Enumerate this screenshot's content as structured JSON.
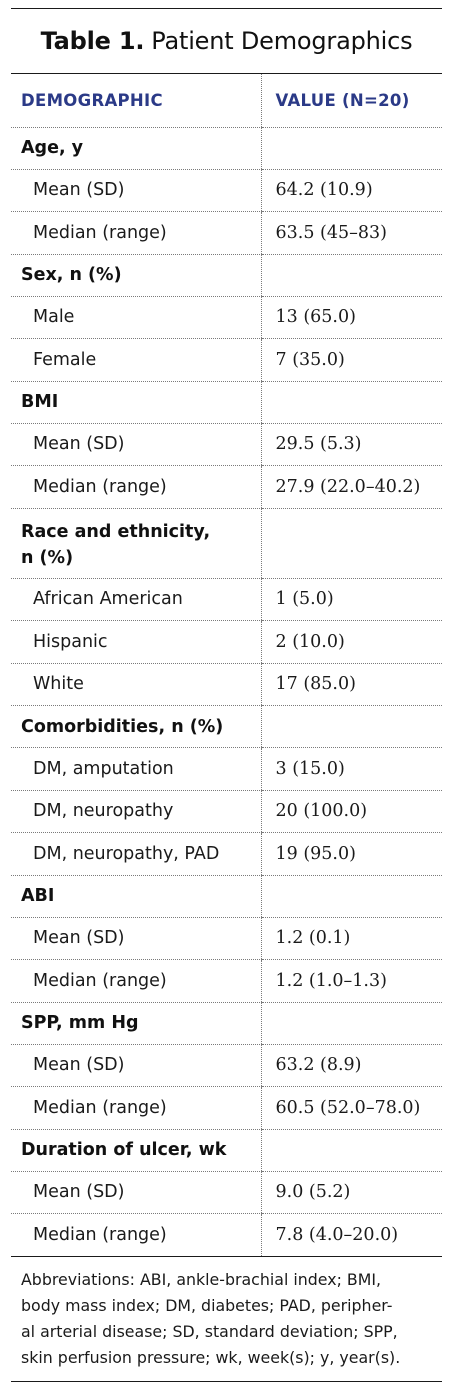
{
  "title": {
    "label": "Table 1.",
    "text": "Patient Demographics"
  },
  "columns": [
    "DEMOGRAPHIC",
    "VALUE (N=20)"
  ],
  "rows": [
    {
      "type": "header",
      "label": "Age, y",
      "value": ""
    },
    {
      "type": "sub",
      "label": "Mean (SD)",
      "value": "64.2 (10.9)"
    },
    {
      "type": "sub",
      "label": "Median (range)",
      "value": "63.5 (45–83)"
    },
    {
      "type": "header",
      "label": "Sex, n (%)",
      "value": ""
    },
    {
      "type": "sub",
      "label": "Male",
      "value": "13 (65.0)"
    },
    {
      "type": "sub",
      "label": "Female",
      "value": "7 (35.0)"
    },
    {
      "type": "header",
      "label": "BMI",
      "value": ""
    },
    {
      "type": "sub",
      "label": "Mean (SD)",
      "value": "29.5 (5.3)"
    },
    {
      "type": "sub",
      "label": "Median (range)",
      "value": "27.9 (22.0–40.2)"
    },
    {
      "type": "header",
      "label": "Race and ethnicity,",
      "label_line2": "n (%)",
      "value": ""
    },
    {
      "type": "sub",
      "label": "African American",
      "value": "1 (5.0)"
    },
    {
      "type": "sub",
      "label": "Hispanic",
      "value": "2 (10.0)"
    },
    {
      "type": "sub",
      "label": "White",
      "value": "17 (85.0)"
    },
    {
      "type": "header",
      "label": "Comorbidities, n (%)",
      "value": ""
    },
    {
      "type": "sub",
      "label": "DM, amputation",
      "value": "3 (15.0)"
    },
    {
      "type": "sub",
      "label": "DM, neuropathy",
      "value": "20 (100.0)"
    },
    {
      "type": "sub",
      "label": "DM, neuropathy, PAD",
      "value": "19 (95.0)"
    },
    {
      "type": "header",
      "label": "ABI",
      "value": ""
    },
    {
      "type": "sub",
      "label": "Mean (SD)",
      "value": "1.2 (0.1)"
    },
    {
      "type": "sub",
      "label": "Median (range)",
      "value": "1.2 (1.0–1.3)"
    },
    {
      "type": "header",
      "label": "SPP, mm Hg",
      "value": ""
    },
    {
      "type": "sub",
      "label": "Mean (SD)",
      "value": "63.2 (8.9)"
    },
    {
      "type": "sub",
      "label": "Median (range)",
      "value": "60.5 (52.0–78.0)"
    },
    {
      "type": "header",
      "label": "Duration of ulcer, wk",
      "value": ""
    },
    {
      "type": "sub",
      "label": "Mean (SD)",
      "value": "9.0 (5.2)"
    },
    {
      "type": "sub",
      "label": "Median (range)",
      "value": "7.8 (4.0–20.0)"
    }
  ],
  "footnote_lines": [
    "Abbreviations: ABI, ankle-brachial index; BMI,",
    "body mass index; DM, diabetes; PAD, peripher-",
    "al arterial disease; SD, standard deviation; SPP,",
    "skin perfusion pressure; wk, week(s); y, year(s)."
  ],
  "colors": {
    "header_text": "#2b3a87",
    "body_text": "#1a1a1a",
    "rule": "#1a1a1a"
  }
}
